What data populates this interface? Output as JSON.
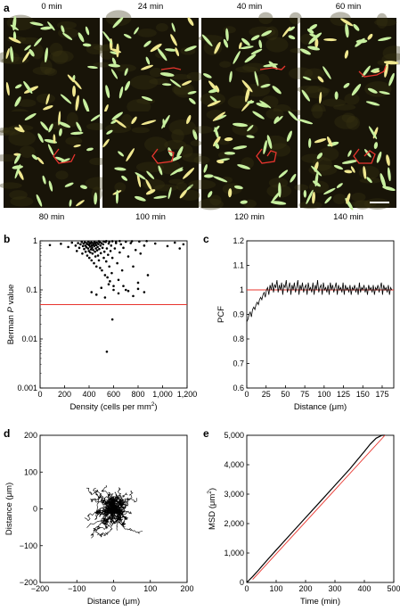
{
  "panels": {
    "a": {
      "letter": "a",
      "time_labels": [
        "0 min",
        "24 min",
        "40 min",
        "60 min",
        "80 min",
        "100 min",
        "120 min",
        "140 min"
      ],
      "track_color": "#e8352e",
      "cell_color": "#c8f0a0",
      "background_color": "#181408"
    },
    "b": {
      "letter": "b"
    },
    "c": {
      "letter": "c"
    },
    "d": {
      "letter": "d"
    },
    "e": {
      "letter": "e"
    }
  },
  "chart_data": [
    {
      "panel": "b",
      "type": "scatter",
      "xlabel": "Density (cells per mm²)",
      "ylabel": "Berman P value",
      "ylabel_parts": [
        "Berman ",
        "P",
        " value"
      ],
      "xlim": [
        0,
        1200
      ],
      "ylim": [
        0.001,
        1
      ],
      "yscale": "log",
      "xticks": [
        0,
        200,
        400,
        600,
        800,
        1000,
        1200
      ],
      "xtick_labels": [
        "0",
        "200",
        "400",
        "600",
        "800",
        "1,000",
        "1,200"
      ],
      "yticks": [
        1,
        0.1,
        0.01,
        0.001
      ],
      "ytick_labels": [
        "1",
        "0.1",
        "0.01",
        "0.001"
      ],
      "reference_line": {
        "y": 0.05,
        "color": "#e8352e"
      },
      "points_summary": "dense cloud near P≈0.3–1 for densities 300–850; outliers at (590,0.025) and (545,0.0055)",
      "x": [
        80,
        170,
        230,
        260,
        290,
        300,
        310,
        320,
        330,
        340,
        345,
        350,
        355,
        360,
        365,
        370,
        372,
        378,
        380,
        385,
        388,
        392,
        395,
        398,
        400,
        402,
        405,
        408,
        410,
        412,
        415,
        418,
        420,
        422,
        425,
        428,
        430,
        433,
        436,
        440,
        442,
        445,
        448,
        450,
        452,
        455,
        458,
        460,
        463,
        466,
        470,
        473,
        476,
        480,
        483,
        486,
        490,
        493,
        496,
        500,
        505,
        510,
        515,
        520,
        525,
        530,
        535,
        540,
        545,
        550,
        555,
        560,
        565,
        570,
        575,
        580,
        585,
        590,
        600,
        610,
        620,
        630,
        640,
        650,
        660,
        670,
        680,
        700,
        720,
        740,
        760,
        780,
        800,
        820,
        850,
        880,
        940,
        1040,
        1100,
        1140,
        1170,
        420,
        460,
        500,
        530,
        560,
        600,
        640,
        680,
        720,
        760,
        800,
        850,
        480,
        520,
        540,
        565,
        590,
        620,
        650,
        700,
        750,
        810,
        870,
        545
      ],
      "y": [
        0.82,
        0.87,
        0.75,
        0.92,
        0.8,
        0.62,
        0.9,
        0.72,
        0.85,
        0.95,
        0.55,
        0.78,
        0.88,
        0.68,
        0.93,
        0.8,
        0.6,
        0.74,
        0.9,
        0.5,
        0.85,
        0.7,
        0.96,
        0.62,
        0.82,
        0.45,
        0.9,
        0.76,
        0.58,
        0.88,
        0.67,
        0.93,
        0.4,
        0.8,
        0.72,
        0.55,
        0.9,
        0.65,
        0.84,
        0.35,
        0.78,
        0.95,
        0.6,
        0.88,
        0.48,
        0.7,
        0.82,
        0.3,
        0.92,
        0.64,
        0.75,
        0.5,
        0.86,
        0.4,
        0.68,
        0.94,
        0.28,
        0.8,
        0.56,
        0.9,
        0.25,
        0.72,
        0.85,
        0.45,
        0.6,
        0.2,
        0.95,
        0.38,
        0.7,
        0.18,
        0.52,
        0.88,
        0.3,
        0.15,
        0.62,
        0.8,
        0.22,
        0.45,
        0.12,
        0.7,
        0.9,
        0.35,
        0.16,
        0.58,
        0.85,
        0.25,
        0.72,
        0.1,
        0.48,
        0.9,
        0.3,
        0.65,
        0.14,
        0.55,
        0.8,
        0.2,
        0.88,
        0.78,
        0.92,
        0.7,
        0.85,
        0.09,
        0.08,
        0.11,
        0.07,
        0.13,
        0.1,
        0.085,
        0.12,
        0.095,
        0.075,
        0.105,
        0.09,
        0.98,
        0.97,
        0.99,
        0.96,
        0.98,
        0.97,
        0.99,
        0.96,
        0.98,
        0.97,
        0.99,
        0.0055
      ],
      "extra_points": [
        {
          "x": 590,
          "y": 0.025
        }
      ]
    },
    {
      "panel": "c",
      "type": "line",
      "xlabel": "Distance (μm)",
      "ylabel": "PCF",
      "xlim": [
        0,
        190
      ],
      "ylim": [
        0.6,
        1.2
      ],
      "xticks": [
        0,
        25,
        50,
        75,
        100,
        125,
        150,
        175
      ],
      "yticks": [
        0.6,
        0.7,
        0.8,
        0.9,
        1,
        1.1,
        1.2
      ],
      "xtick_labels": [
        "0",
        "25",
        "50",
        "75",
        "100",
        "125",
        "150",
        "175"
      ],
      "ytick_labels": [
        "0.6",
        "0.7",
        "0.8",
        "0.9",
        "1",
        "1.1",
        "1.2"
      ],
      "reference_line": {
        "y": 1,
        "color": "#e8352e"
      },
      "x_step": 1.5,
      "values": [
        0.87,
        0.88,
        0.9,
        0.91,
        0.89,
        0.92,
        0.93,
        0.92,
        0.94,
        0.95,
        0.94,
        0.96,
        0.97,
        0.96,
        0.98,
        0.99,
        0.97,
        1.0,
        1.01,
        0.98,
        1.02,
        1.0,
        1.03,
        0.99,
        1.02,
        1.01,
        1.04,
        0.99,
        1.02,
        1.0,
        1.03,
        0.98,
        1.02,
        1.01,
        1.04,
        0.99,
        1.01,
        1.03,
        0.98,
        1.02,
        1.0,
        1.03,
        0.99,
        1.01,
        1.04,
        0.98,
        1.02,
        1.0,
        1.03,
        0.99,
        1.01,
        1.02,
        0.98,
        1.03,
        1.0,
        1.01,
        0.99,
        1.03,
        0.98,
        1.02,
        1.0,
        1.04,
        0.99,
        1.01,
        1.02,
        0.98,
        1.03,
        1.0,
        1.01,
        0.99,
        1.02,
        0.98,
        1.03,
        1.0,
        1.02,
        0.99,
        1.01,
        1.03,
        0.98,
        1.02,
        1.0,
        1.01,
        0.99,
        1.03,
        0.98,
        1.02,
        1.0,
        1.01,
        0.99,
        1.02,
        0.98,
        1.01,
        1.0,
        1.02,
        0.99,
        1.01,
        0.98,
        1.03,
        0.99,
        1.01,
        1.0,
        1.02,
        0.99,
        1.01,
        0.98,
        1.02,
        1.0,
        1.01,
        0.99,
        1.02,
        0.98,
        1.01,
        1.0,
        1.02,
        0.99,
        1.01,
        1.03,
        0.98,
        1.02,
        1.0,
        1.01,
        0.99,
        1.02,
        0.98,
        1.01,
        1.0
      ]
    },
    {
      "panel": "d",
      "type": "line",
      "subtype": "trajectories",
      "xlabel": "Distance (μm)",
      "ylabel": "Distance (μm)",
      "xlim": [
        -200,
        200
      ],
      "ylim": [
        -200,
        200
      ],
      "xticks": [
        -200,
        -100,
        0,
        100,
        200
      ],
      "yticks": [
        200,
        100,
        0,
        -100,
        -200
      ],
      "xtick_labels": [
        "−200",
        "−100",
        "0",
        "100",
        "200"
      ],
      "ytick_labels": [
        "200",
        "100",
        "0",
        "−100",
        "−200"
      ],
      "n_tracks": 70
    },
    {
      "panel": "e",
      "type": "line",
      "xlabel": "Time (min)",
      "ylabel": "MSD (μm²)",
      "xlim": [
        0,
        500
      ],
      "ylim": [
        0,
        5000
      ],
      "xticks": [
        0,
        100,
        200,
        300,
        400,
        500
      ],
      "yticks": [
        0,
        1000,
        2000,
        3000,
        4000,
        5000
      ],
      "xtick_labels": [
        "0",
        "100",
        "200",
        "300",
        "400",
        "500"
      ],
      "ytick_labels": [
        "0",
        "1,000",
        "2,000",
        "3,000",
        "4,000",
        "5,000"
      ],
      "series": [
        {
          "color": "#000000",
          "x": [
            0,
            20,
            40,
            60,
            80,
            100,
            150,
            200,
            250,
            300,
            350,
            400,
            420,
            440,
            460,
            470
          ],
          "values": [
            0,
            200,
            420,
            650,
            880,
            1100,
            1650,
            2200,
            2750,
            3300,
            3850,
            4450,
            4700,
            4900,
            5000,
            5000
          ]
        },
        {
          "color": "#e8352e",
          "x": [
            20,
            470
          ],
          "values": [
            100,
            5000
          ]
        }
      ]
    }
  ]
}
